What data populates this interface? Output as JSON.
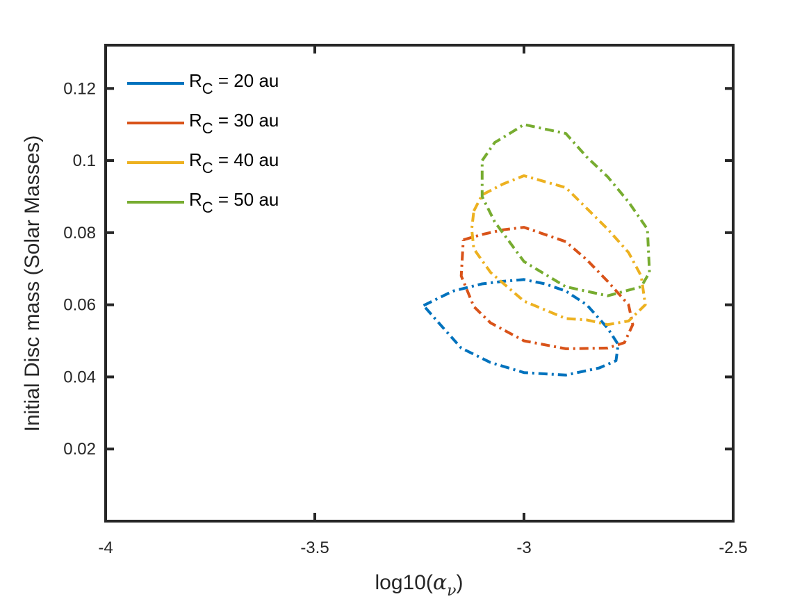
{
  "chart_data": {
    "type": "line",
    "title": "",
    "xlabel_prefix": "log10(",
    "xlabel_symbol": "α",
    "xlabel_subscript": "ν",
    "xlabel_suffix": ")",
    "ylabel": "Initial Disc mass (Solar Masses)",
    "xlim": [
      -4,
      -2.5
    ],
    "ylim": [
      0,
      0.132
    ],
    "xticks": [
      -4,
      -3.5,
      -3,
      -2.5
    ],
    "xtick_labels": [
      "-4",
      "-3.5",
      "-3",
      "-2.5"
    ],
    "yticks": [
      0.02,
      0.04,
      0.06,
      0.08,
      0.1,
      0.12
    ],
    "ytick_labels": [
      "0.02",
      "0.04",
      "0.06",
      "0.08",
      "0.1",
      "0.12"
    ],
    "grid": false,
    "legend_position": "top-left",
    "line_style": "dash-dot closed contours",
    "series": [
      {
        "label_main": "R",
        "label_sub": "C",
        "label_rest": " = 20 au",
        "color": "#0072BD",
        "x": [
          -3.24,
          -3.17,
          -3.1,
          -3.05,
          -3.0,
          -2.95,
          -2.9,
          -2.85,
          -2.8,
          -2.775,
          -2.78,
          -2.82,
          -2.9,
          -3.0,
          -3.08,
          -3.15,
          -3.2,
          -3.24
        ],
        "y": [
          0.0598,
          0.0638,
          0.0658,
          0.0665,
          0.067,
          0.0658,
          0.0638,
          0.06,
          0.0535,
          0.049,
          0.0445,
          0.0425,
          0.0405,
          0.0412,
          0.044,
          0.048,
          0.0545,
          0.0598
        ]
      },
      {
        "label_main": "R",
        "label_sub": "C",
        "label_rest": " = 30 au",
        "color": "#D95319",
        "x": [
          -3.145,
          -3.1,
          -3.05,
          -3.0,
          -2.9,
          -2.85,
          -2.8,
          -2.75,
          -2.74,
          -2.76,
          -2.8,
          -2.9,
          -3.0,
          -3.08,
          -3.12,
          -3.15,
          -3.145
        ],
        "y": [
          0.078,
          0.0795,
          0.0808,
          0.0815,
          0.0775,
          0.0725,
          0.0665,
          0.06,
          0.0545,
          0.0495,
          0.048,
          0.0478,
          0.05,
          0.055,
          0.0595,
          0.068,
          0.078
        ]
      },
      {
        "label_main": "R",
        "label_sub": "C",
        "label_rest": " = 40 au",
        "color": "#EDB120",
        "x": [
          -3.12,
          -3.1,
          -3.05,
          -3.0,
          -2.9,
          -2.8,
          -2.75,
          -2.72,
          -2.71,
          -2.75,
          -2.8,
          -2.85,
          -2.9,
          -3.0,
          -3.08,
          -3.12,
          -3.125,
          -3.12
        ],
        "y": [
          0.086,
          0.0905,
          0.0935,
          0.0958,
          0.0925,
          0.081,
          0.0745,
          0.068,
          0.06,
          0.0555,
          0.0545,
          0.0558,
          0.0562,
          0.061,
          0.069,
          0.0755,
          0.081,
          0.086
        ]
      },
      {
        "label_main": "R",
        "label_sub": "C",
        "label_rest": " = 50 au",
        "color": "#77AC30",
        "x": [
          -3.1,
          -3.07,
          -3.03,
          -3.0,
          -2.9,
          -2.85,
          -2.8,
          -2.75,
          -2.705,
          -2.7,
          -2.72,
          -2.8,
          -2.9,
          -3.0,
          -3.07,
          -3.1,
          -3.1
        ],
        "y": [
          0.1,
          0.105,
          0.1078,
          0.11,
          0.1075,
          0.101,
          0.0955,
          0.0885,
          0.081,
          0.069,
          0.065,
          0.0625,
          0.065,
          0.072,
          0.083,
          0.09,
          0.1
        ]
      }
    ]
  }
}
